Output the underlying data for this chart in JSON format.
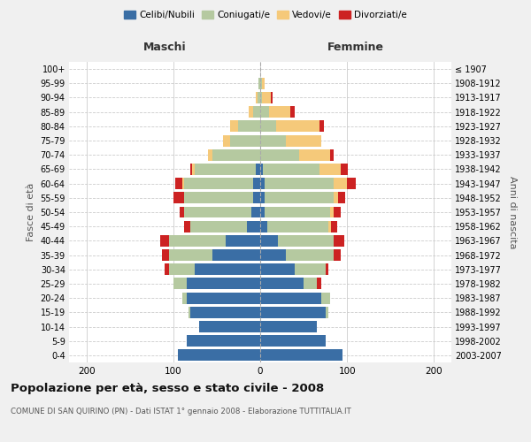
{
  "age_groups": [
    "0-4",
    "5-9",
    "10-14",
    "15-19",
    "20-24",
    "25-29",
    "30-34",
    "35-39",
    "40-44",
    "45-49",
    "50-54",
    "55-59",
    "60-64",
    "65-69",
    "70-74",
    "75-79",
    "80-84",
    "85-89",
    "90-94",
    "95-99",
    "100+"
  ],
  "birth_years": [
    "2003-2007",
    "1998-2002",
    "1993-1997",
    "1988-1992",
    "1983-1987",
    "1978-1982",
    "1973-1977",
    "1968-1972",
    "1963-1967",
    "1958-1962",
    "1953-1957",
    "1948-1952",
    "1943-1947",
    "1938-1942",
    "1933-1937",
    "1928-1932",
    "1923-1927",
    "1918-1922",
    "1913-1917",
    "1908-1912",
    "≤ 1907"
  ],
  "maschi": {
    "celibi": [
      95,
      85,
      70,
      80,
      85,
      85,
      75,
      55,
      40,
      15,
      10,
      8,
      8,
      5,
      0,
      0,
      0,
      0,
      0,
      0,
      0
    ],
    "coniugati": [
      0,
      0,
      0,
      2,
      5,
      15,
      30,
      50,
      65,
      65,
      78,
      80,
      80,
      70,
      55,
      35,
      25,
      8,
      3,
      2,
      0
    ],
    "vedovi": [
      0,
      0,
      0,
      0,
      0,
      0,
      0,
      0,
      0,
      0,
      0,
      0,
      2,
      3,
      5,
      8,
      10,
      5,
      2,
      0,
      0
    ],
    "divorziati": [
      0,
      0,
      0,
      0,
      0,
      0,
      5,
      8,
      10,
      8,
      5,
      12,
      8,
      2,
      0,
      0,
      0,
      0,
      0,
      0,
      0
    ]
  },
  "femmine": {
    "nubili": [
      95,
      75,
      65,
      75,
      70,
      50,
      40,
      30,
      20,
      8,
      5,
      5,
      5,
      3,
      0,
      0,
      0,
      0,
      0,
      0,
      0
    ],
    "coniugate": [
      0,
      0,
      0,
      3,
      10,
      15,
      35,
      55,
      65,
      70,
      75,
      80,
      80,
      65,
      45,
      30,
      18,
      10,
      2,
      2,
      0
    ],
    "vedove": [
      0,
      0,
      0,
      0,
      0,
      0,
      0,
      0,
      0,
      3,
      5,
      5,
      15,
      25,
      35,
      40,
      50,
      25,
      10,
      3,
      0
    ],
    "divorziate": [
      0,
      0,
      0,
      0,
      0,
      5,
      3,
      8,
      12,
      8,
      8,
      8,
      10,
      8,
      5,
      0,
      5,
      5,
      2,
      0,
      0
    ]
  },
  "colors": {
    "celibi": "#3A6EA5",
    "coniugati": "#B5C9A0",
    "vedovi": "#F5C97A",
    "divorziati": "#CC2222"
  },
  "xlim": 220,
  "title": "Popolazione per età, sesso e stato civile - 2008",
  "subtitle": "COMUNE DI SAN QUIRINO (PN) - Dati ISTAT 1° gennaio 2008 - Elaborazione TUTTITALIA.IT",
  "ylabel_left": "Fasce di età",
  "ylabel_right": "Anni di nascita",
  "xlabel_left": "Maschi",
  "xlabel_right": "Femmine",
  "bg_color": "#f0f0f0",
  "plot_bg_color": "#ffffff"
}
